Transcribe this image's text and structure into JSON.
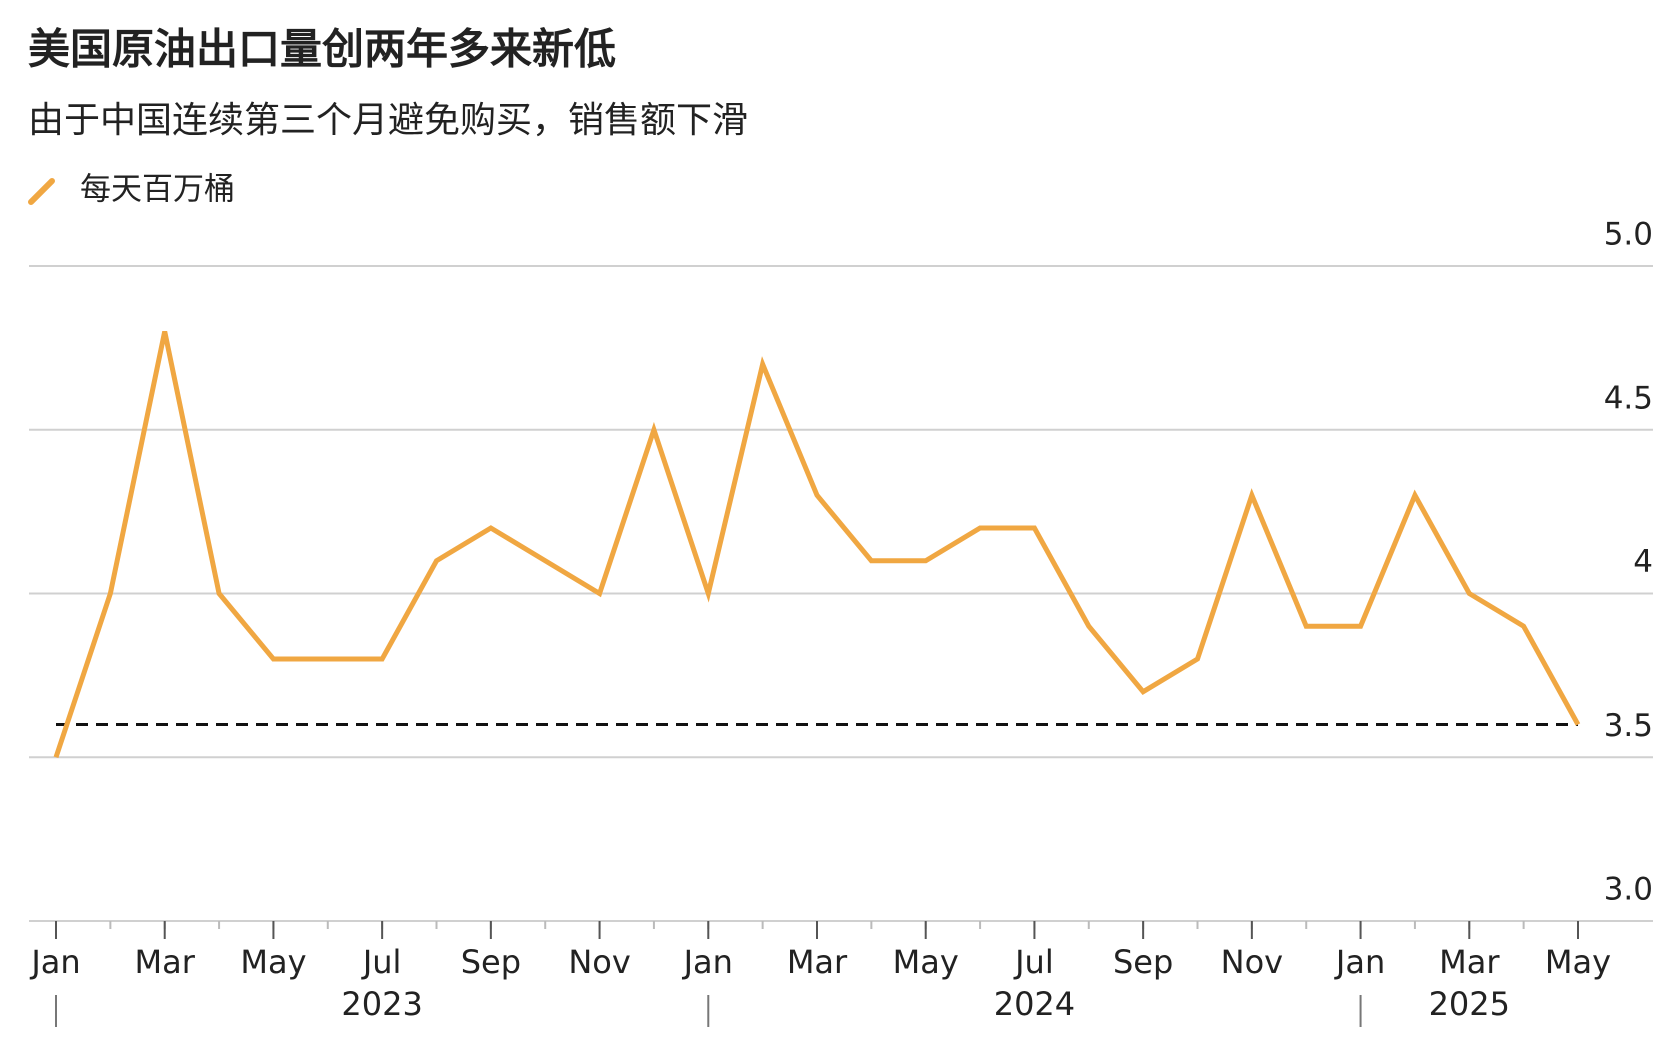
{
  "chart_data": {
    "type": "line",
    "title": "美国原油出口量创两年多来新低",
    "subtitle": "由于中国连续第三个月避免购买，销售额下滑",
    "x": [
      "2023-01",
      "2023-02",
      "2023-03",
      "2023-04",
      "2023-05",
      "2023-06",
      "2023-07",
      "2023-08",
      "2023-09",
      "2023-10",
      "2023-11",
      "2023-12",
      "2024-01",
      "2024-02",
      "2024-03",
      "2024-04",
      "2024-05",
      "2024-06",
      "2024-07",
      "2024-08",
      "2024-09",
      "2024-10",
      "2024-11",
      "2024-12",
      "2025-01",
      "2025-02",
      "2025-03",
      "2025-04",
      "2025-05"
    ],
    "series": [
      {
        "name": "每天百万桶",
        "color": "#f0a742",
        "values": [
          3.5,
          4.0,
          4.8,
          4.0,
          3.8,
          3.8,
          3.8,
          4.1,
          4.2,
          4.1,
          4.0,
          4.5,
          4.0,
          4.7,
          4.3,
          4.1,
          4.1,
          4.2,
          4.2,
          3.9,
          3.7,
          3.8,
          4.3,
          3.9,
          3.9,
          4.3,
          4.0,
          3.9,
          3.6
        ]
      }
    ],
    "reference_line": 3.6,
    "ylim": [
      3.0,
      5.0
    ],
    "yticks": [
      {
        "value": 3.0,
        "label": "3.0"
      },
      3.5,
      4,
      4.5,
      {
        "value": 5.0,
        "label": "5.0"
      }
    ],
    "xticks": [
      {
        "value": "2023-01",
        "label": "Jan"
      },
      {
        "value": "2023-03",
        "label": "Mar"
      },
      {
        "value": "2023-05",
        "label": "May"
      },
      {
        "value": "2023-07",
        "label": "Jul"
      },
      {
        "value": "2023-09",
        "label": "Sep"
      },
      {
        "value": "2023-11",
        "label": "Nov"
      },
      {
        "value": "2024-01",
        "label": "Jan"
      },
      {
        "value": "2024-03",
        "label": "Mar"
      },
      {
        "value": "2024-05",
        "label": "May"
      },
      {
        "value": "2024-07",
        "label": "Jul"
      },
      {
        "value": "2024-09",
        "label": "Sep"
      },
      {
        "value": "2024-11",
        "label": "Nov"
      },
      {
        "value": "2025-01",
        "label": "Jan"
      },
      {
        "value": "2025-03",
        "label": "Mar"
      },
      {
        "value": "2025-05",
        "label": "May"
      }
    ],
    "year_labels": [
      {
        "value": "2023-07",
        "label": "2023"
      },
      {
        "value": "2024-07",
        "label": "2024"
      },
      {
        "value": "2025-03",
        "label": "2025"
      }
    ],
    "year_separators": [
      "2023-01",
      "2024-01",
      "2025-01"
    ],
    "grid": true
  }
}
